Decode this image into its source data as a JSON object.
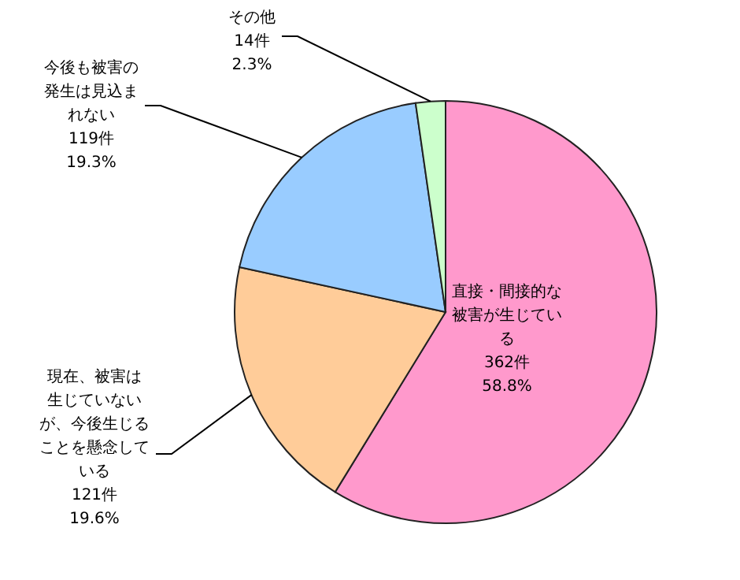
{
  "chart_data": {
    "type": "pie",
    "categories": [
      "直接・間接的な被害が生じている",
      "現在、被害は生じていないが、今後生じることを懸念している",
      "今後も被害の発生は見込まれない",
      "その他"
    ],
    "values": [
      362,
      121,
      119,
      14
    ],
    "value_labels": [
      "362件\n58.8%",
      "121件\n19.6%",
      "119件\n19.3%",
      "14件\n2.3%"
    ],
    "colors": [
      "#ff99cc",
      "#ffcc99",
      "#99ccff",
      "#ccffcc"
    ]
  }
}
